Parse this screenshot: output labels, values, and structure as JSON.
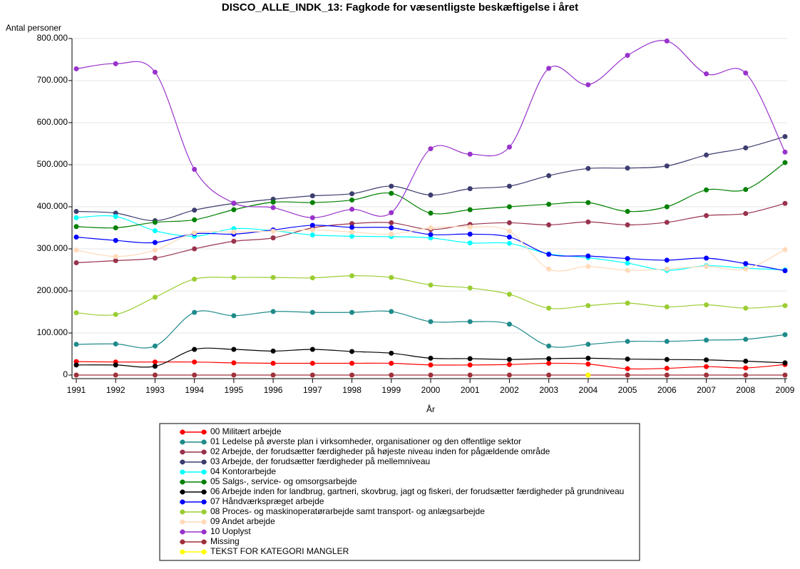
{
  "chart_data": {
    "type": "line",
    "title": "DISCO_ALLE_INDK_13: Fagkode for væsentligste beskæftigelse i året",
    "y_label": "Antal personer",
    "x_label": "År",
    "x": [
      1991,
      1992,
      1993,
      1994,
      1995,
      1996,
      1997,
      1998,
      1999,
      2000,
      2001,
      2002,
      2003,
      2004,
      2005,
      2006,
      2007,
      2008,
      2009
    ],
    "xlim": [
      1991,
      2009
    ],
    "xticks": [
      1991,
      1992,
      1993,
      1994,
      1995,
      1996,
      1997,
      1998,
      1999,
      2000,
      2001,
      2002,
      2003,
      2004,
      2005,
      2006,
      2007,
      2008,
      2009
    ],
    "ylim": [
      0,
      800000
    ],
    "yticks": [
      0,
      {
        "value": 100000,
        "label": "100.000"
      },
      {
        "value": 200000,
        "label": "200.000"
      },
      {
        "value": 300000,
        "label": "300.000"
      },
      {
        "value": 400000,
        "label": "400.000"
      },
      {
        "value": 500000,
        "label": "500.000"
      },
      {
        "value": 600000,
        "label": "600.000"
      },
      {
        "value": 700000,
        "label": "700.000"
      },
      {
        "value": 800000,
        "label": "800.000"
      }
    ],
    "grid": true,
    "series": [
      {
        "name": "00 Militært arbejde",
        "color": "#ff0000",
        "values": [
          32000,
          31000,
          31000,
          31000,
          29000,
          28000,
          28000,
          28000,
          28000,
          24000,
          24000,
          25000,
          28000,
          26000,
          15000,
          16000,
          20000,
          17000,
          25000
        ]
      },
      {
        "name": "01 Ledelse på øverste plan i virksomheder, organisationer og den offentlige sektor",
        "color": "#1f8a8a",
        "values": [
          73000,
          74000,
          69000,
          149000,
          141000,
          151000,
          149000,
          149000,
          151000,
          127000,
          127000,
          121000,
          69000,
          73000,
          80000,
          80000,
          83000,
          85000,
          96000
        ]
      },
      {
        "name": "02 Arbejde, der forudsætter færdigheder på højeste niveau inden for pågældende område",
        "color": "#99334d",
        "values": [
          267000,
          272000,
          278000,
          300000,
          318000,
          326000,
          350000,
          360000,
          362000,
          346000,
          358000,
          362000,
          357000,
          364000,
          357000,
          363000,
          379000,
          384000,
          408000
        ]
      },
      {
        "name": "03 Arbejde, der forudsætter færdigheder på mellemniveau",
        "color": "#3d3d70",
        "values": [
          389000,
          385000,
          367000,
          392000,
          408000,
          418000,
          426000,
          431000,
          449000,
          428000,
          443000,
          449000,
          474000,
          491000,
          492000,
          497000,
          523000,
          540000,
          567000
        ]
      },
      {
        "name": "04 Kontorarbejde",
        "color": "#00ffff",
        "values": [
          374000,
          377000,
          343000,
          330000,
          348000,
          343000,
          333000,
          330000,
          329000,
          326000,
          314000,
          313000,
          288000,
          279000,
          266000,
          249000,
          260000,
          254000,
          250000
        ]
      },
      {
        "name": "05 Salgs-, service- og omsorgsarbejde",
        "color": "#008000",
        "values": [
          353000,
          350000,
          363000,
          369000,
          393000,
          411000,
          410000,
          416000,
          432000,
          385000,
          393000,
          400000,
          406000,
          410000,
          389000,
          400000,
          440000,
          441000,
          505000
        ]
      },
      {
        "name": "06 Arbejde inden for landbrug, gartneri, skovbrug, jagt og fiskeri, der forudsætter færdigheder på grundniveau",
        "color": "#000000",
        "values": [
          24000,
          24000,
          21000,
          61000,
          61000,
          57000,
          61000,
          56000,
          52000,
          40000,
          39000,
          37000,
          39000,
          40000,
          38000,
          37000,
          36000,
          33000,
          29000
        ]
      },
      {
        "name": "07 Håndværkspræget arbejde",
        "color": "#0000ff",
        "values": [
          328000,
          320000,
          315000,
          336000,
          335000,
          345000,
          356000,
          351000,
          350000,
          334000,
          335000,
          328000,
          287000,
          283000,
          277000,
          273000,
          278000,
          265000,
          248000
        ]
      },
      {
        "name": "08 Proces- og maskinoperatørarbejde samt transport- og anlægsarbejde",
        "color": "#9acd32",
        "values": [
          148000,
          144000,
          185000,
          228000,
          232000,
          232000,
          231000,
          236000,
          232000,
          214000,
          207000,
          192000,
          159000,
          165000,
          171000,
          162000,
          167000,
          159000,
          165000
        ]
      },
      {
        "name": "09 Andet arbejde",
        "color": "#ffdab9",
        "values": [
          297000,
          282000,
          297000,
          338000,
          340000,
          342000,
          345000,
          340000,
          335000,
          350000,
          352000,
          342000,
          252000,
          258000,
          249000,
          252000,
          258000,
          252000,
          298000
        ]
      },
      {
        "name": "10 Uoplyst",
        "color": "#9932cc",
        "values": [
          728000,
          740000,
          720000,
          489000,
          409000,
          398000,
          374000,
          394000,
          386000,
          538000,
          525000,
          542000,
          729000,
          690000,
          760000,
          794000,
          716000,
          718000,
          530000
        ]
      },
      {
        "name": "Missing",
        "color": "#a0303a",
        "values": [
          0,
          0,
          0,
          0,
          0,
          0,
          0,
          0,
          0,
          0,
          0,
          0,
          0,
          0,
          0,
          0,
          0,
          0,
          0
        ]
      },
      {
        "name": "TEKST FOR KATEGORI MANGLER",
        "color": "#ffff00",
        "values": [
          null,
          null,
          null,
          null,
          null,
          null,
          null,
          null,
          null,
          null,
          null,
          null,
          null,
          0,
          null,
          null,
          null,
          null,
          null
        ]
      }
    ]
  }
}
